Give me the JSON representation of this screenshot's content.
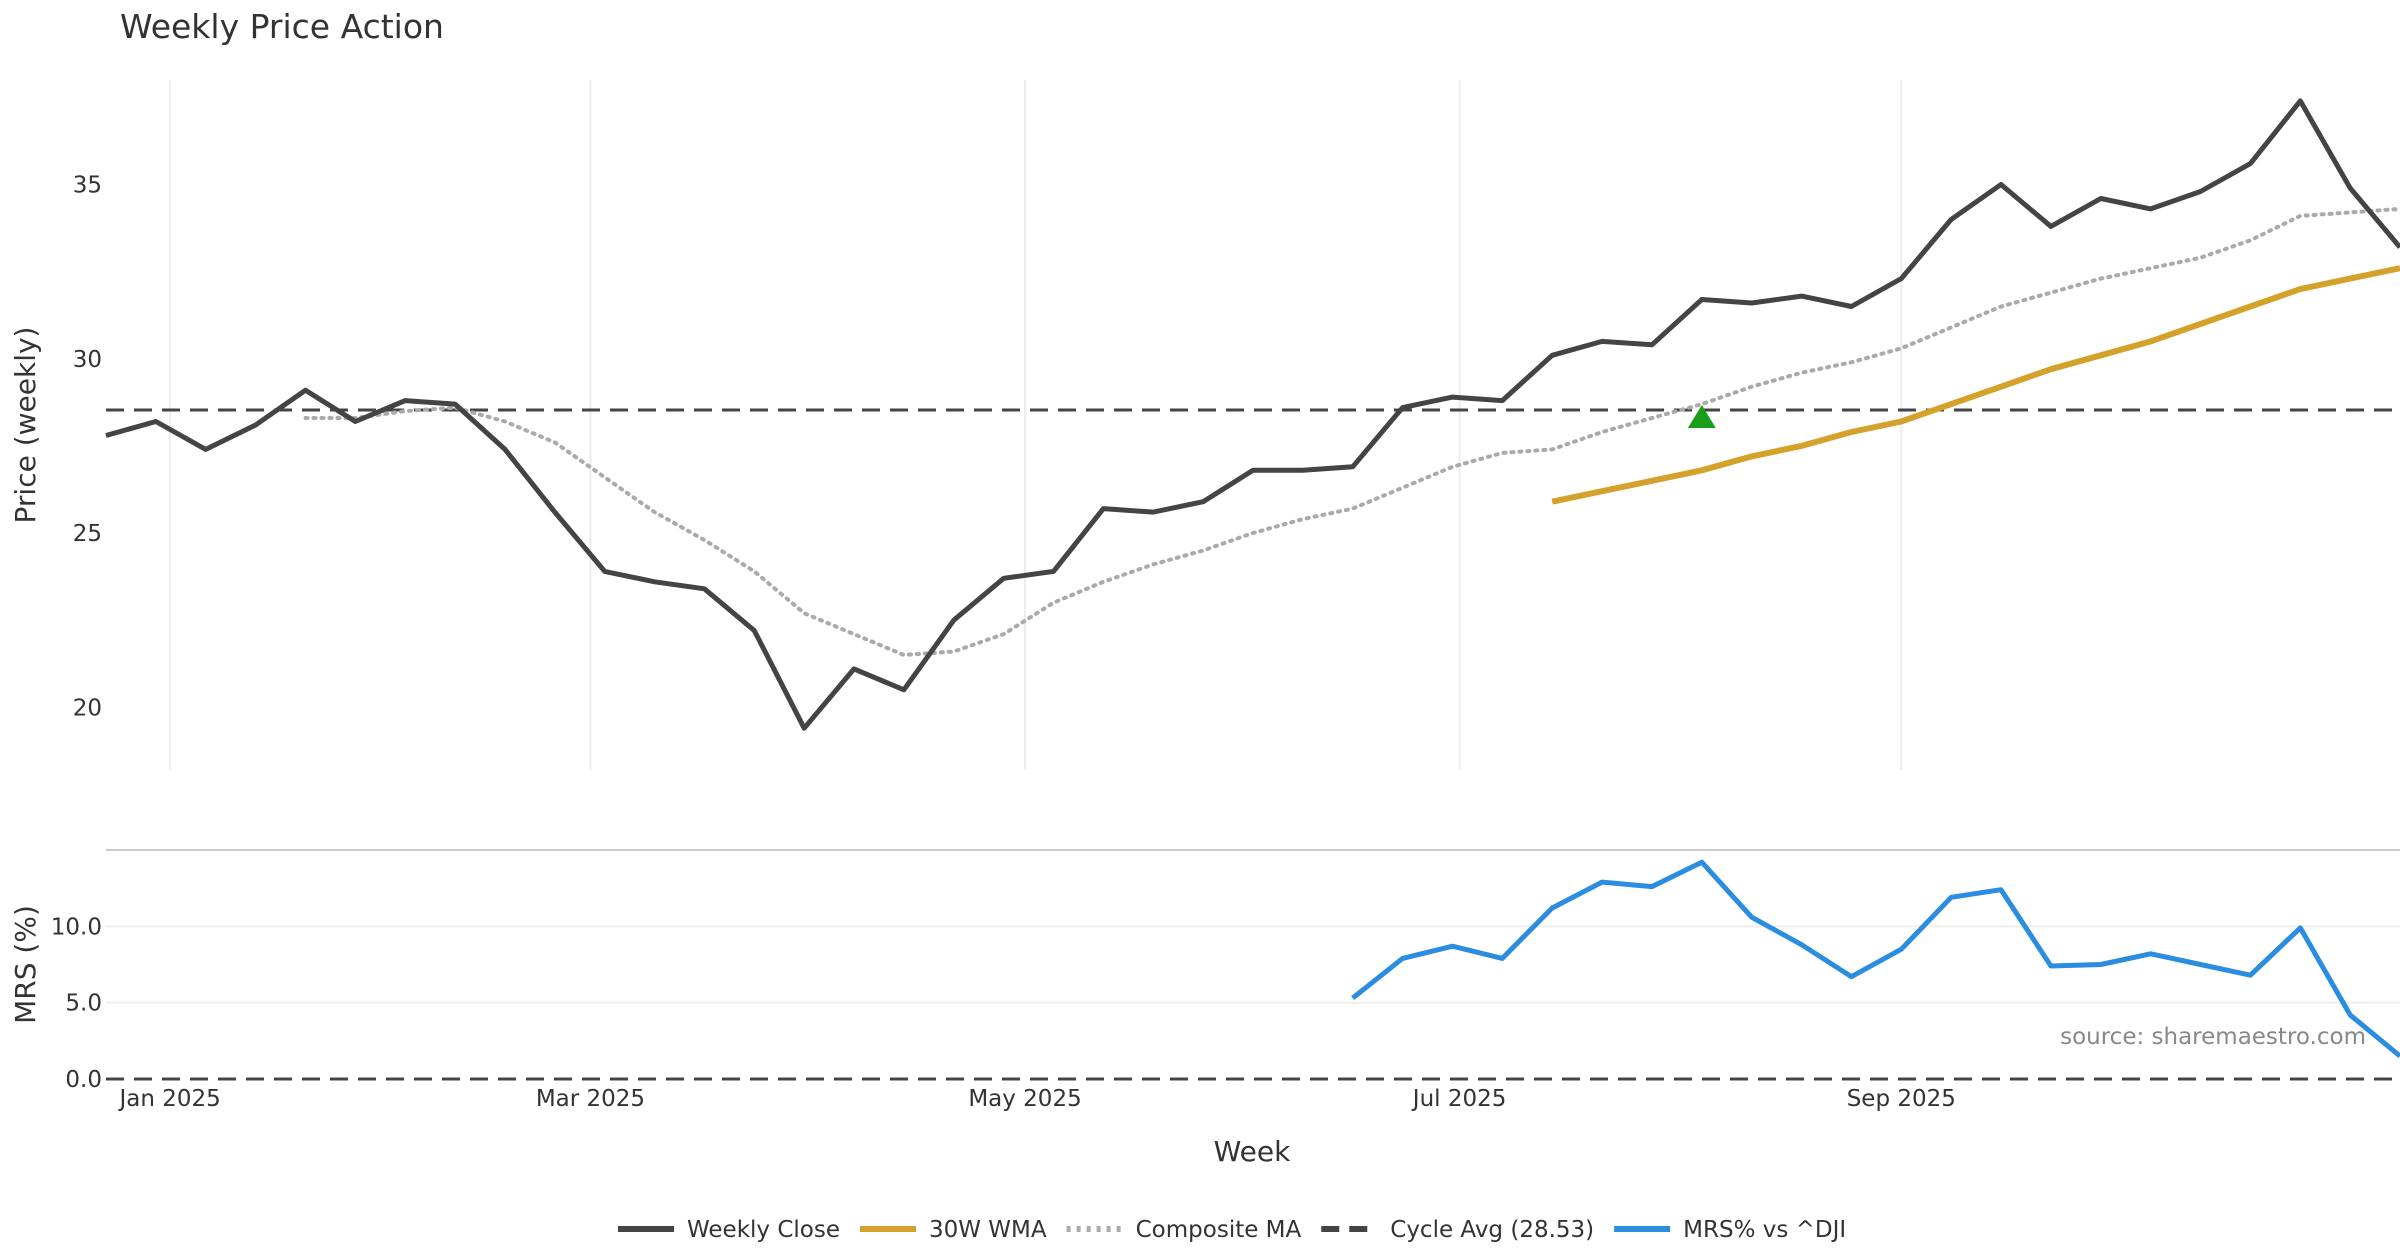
{
  "chart_data": {
    "type": "line",
    "title": "Weekly Price Action",
    "xlabel": "Week",
    "source": "source: sharemaestro.com",
    "x": [
      "2024-12-23",
      "2024-12-30",
      "2025-01-06",
      "2025-01-13",
      "2025-01-20",
      "2025-01-27",
      "2025-02-03",
      "2025-02-10",
      "2025-02-17",
      "2025-02-24",
      "2025-03-03",
      "2025-03-10",
      "2025-03-17",
      "2025-03-24",
      "2025-03-31",
      "2025-04-07",
      "2025-04-14",
      "2025-04-21",
      "2025-04-28",
      "2025-05-05",
      "2025-05-12",
      "2025-05-19",
      "2025-05-26",
      "2025-06-02",
      "2025-06-09",
      "2025-06-16",
      "2025-06-23",
      "2025-06-30",
      "2025-07-07",
      "2025-07-14",
      "2025-07-21",
      "2025-07-28",
      "2025-08-04",
      "2025-08-11",
      "2025-08-18",
      "2025-08-25",
      "2025-09-01",
      "2025-09-08",
      "2025-09-15",
      "2025-09-22",
      "2025-09-29",
      "2025-10-06",
      "2025-10-13",
      "2025-10-20",
      "2025-10-27",
      "2025-11-03",
      "2025-11-10"
    ],
    "x_ticks": [
      {
        "date": "2025-01-01",
        "label": "Jan 2025"
      },
      {
        "date": "2025-03-01",
        "label": "Mar 2025"
      },
      {
        "date": "2025-05-01",
        "label": "May 2025"
      },
      {
        "date": "2025-07-01",
        "label": "Jul 2025"
      },
      {
        "date": "2025-09-01",
        "label": "Sep 2025"
      }
    ],
    "xlim": [
      "2024-12-23",
      "2025-11-10"
    ],
    "panels": [
      {
        "name": "price",
        "ylabel": "Price (weekly)",
        "ylim": [
          18.2,
          38.0
        ],
        "yticks": [
          20,
          25,
          30,
          35
        ],
        "tick_decimals": 0,
        "series": [
          {
            "name": "Composite MA",
            "type": "line",
            "color": "#aaaaaa",
            "style": "dotted",
            "values": [
              null,
              null,
              null,
              null,
              28.3,
              28.3,
              28.5,
              28.6,
              28.2,
              27.6,
              26.6,
              25.6,
              24.8,
              23.9,
              22.7,
              22.1,
              21.5,
              21.6,
              22.1,
              23.0,
              23.6,
              24.1,
              24.5,
              25.0,
              25.4,
              25.7,
              26.3,
              26.9,
              27.3,
              27.4,
              27.9,
              28.3,
              28.7,
              29.2,
              29.6,
              29.9,
              30.3,
              30.9,
              31.5,
              31.9,
              32.3,
              32.6,
              32.9,
              33.4,
              34.1,
              34.2,
              34.3
            ]
          },
          {
            "name": "30W WMA",
            "type": "line",
            "color": "#d4a12a",
            "style": "solid",
            "values": [
              null,
              null,
              null,
              null,
              null,
              null,
              null,
              null,
              null,
              null,
              null,
              null,
              null,
              null,
              null,
              null,
              null,
              null,
              null,
              null,
              null,
              null,
              null,
              null,
              null,
              null,
              null,
              null,
              null,
              25.9,
              26.2,
              26.5,
              26.8,
              27.2,
              27.5,
              27.9,
              28.2,
              28.7,
              29.2,
              29.7,
              30.1,
              30.5,
              31.0,
              31.5,
              32.0,
              32.3,
              32.6
            ]
          },
          {
            "name": "Weekly Close",
            "type": "line",
            "color": "#444444",
            "style": "solid",
            "values": [
              27.8,
              28.2,
              27.4,
              28.1,
              29.1,
              28.2,
              28.8,
              28.7,
              27.4,
              25.6,
              23.9,
              23.6,
              23.4,
              22.2,
              19.4,
              21.1,
              20.5,
              22.5,
              23.7,
              23.9,
              25.7,
              25.6,
              25.9,
              26.8,
              26.8,
              26.9,
              28.6,
              28.9,
              28.8,
              30.1,
              30.5,
              30.4,
              31.7,
              31.6,
              31.8,
              31.5,
              32.3,
              34.0,
              35.0,
              33.8,
              34.6,
              34.3,
              34.8,
              35.6,
              37.4,
              34.9,
              33.2
            ]
          }
        ],
        "reference_lines": [
          {
            "name": "Cycle Avg (28.53)",
            "value": 28.53,
            "color": "#444444",
            "style": "dashed"
          }
        ],
        "markers": [
          {
            "name": "signal",
            "date": "2025-08-04",
            "value": 28.3,
            "shape": "triangle-up",
            "color": "#1a9e1a"
          }
        ]
      },
      {
        "name": "mrs",
        "ylabel": "MRS (%)",
        "ylim": [
          0,
          15
        ],
        "yticks": [
          0.0,
          5.0,
          10.0
        ],
        "tick_decimals": 1,
        "series": [
          {
            "name": "MRS% vs ^DJI",
            "type": "line",
            "color": "#2b8de0",
            "style": "solid",
            "values": [
              null,
              null,
              null,
              null,
              null,
              null,
              null,
              null,
              null,
              null,
              null,
              null,
              null,
              null,
              null,
              null,
              null,
              null,
              null,
              null,
              null,
              null,
              null,
              null,
              null,
              5.3,
              7.9,
              8.7,
              7.9,
              11.2,
              12.9,
              12.6,
              14.2,
              10.6,
              8.8,
              6.7,
              8.5,
              11.9,
              12.4,
              7.4,
              7.5,
              8.2,
              7.5,
              6.8,
              9.9,
              4.2,
              1.5
            ]
          }
        ],
        "reference_lines": [
          {
            "name": "zero",
            "value": 0,
            "color": "#444444",
            "style": "dashed"
          }
        ]
      }
    ],
    "legend": {
      "position": "bottom-center",
      "items": [
        {
          "label": "Weekly Close",
          "color": "#444444",
          "style": "solid"
        },
        {
          "label": "30W WMA",
          "color": "#d4a12a",
          "style": "solid"
        },
        {
          "label": "Composite MA",
          "color": "#aaaaaa",
          "style": "dotted"
        },
        {
          "label": "Cycle Avg (28.53)",
          "color": "#444444",
          "style": "dashed"
        },
        {
          "label": "MRS% vs ^DJI",
          "color": "#2b8de0",
          "style": "solid"
        }
      ]
    }
  }
}
